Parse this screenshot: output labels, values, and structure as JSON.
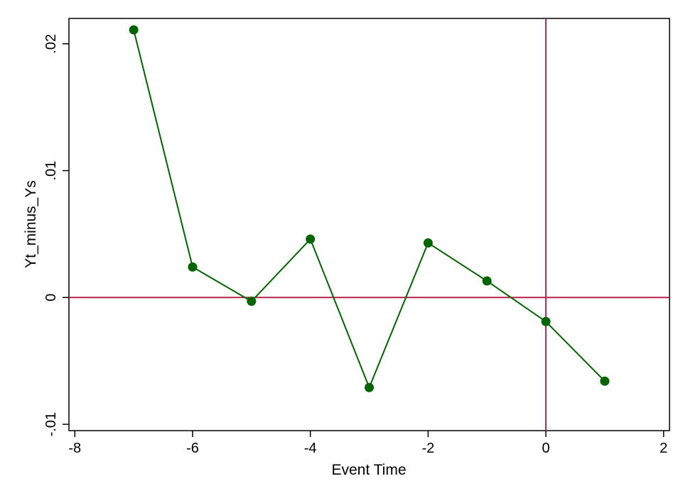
{
  "chart_data": {
    "type": "line",
    "xlabel": "Event Time",
    "ylabel": "Yt_minus_Ys",
    "xlim": [
      -8.1,
      2.1
    ],
    "ylim": [
      -0.0105,
      0.022
    ],
    "x_ticks": [
      {
        "value": -8,
        "label": "-8"
      },
      {
        "value": -6,
        "label": "-6"
      },
      {
        "value": -4,
        "label": "-4"
      },
      {
        "value": -2,
        "label": "-2"
      },
      {
        "value": 0,
        "label": "0"
      },
      {
        "value": 2,
        "label": "2"
      }
    ],
    "y_ticks": [
      {
        "value": -0.01,
        "label": "-.01"
      },
      {
        "value": 0,
        "label": "0"
      },
      {
        "value": 0.01,
        "label": ".01"
      },
      {
        "value": 0.02,
        "label": ".02"
      }
    ],
    "reference_lines": {
      "x": 0,
      "y": 0,
      "color": "#b0163f"
    },
    "series": [
      {
        "color": "#006400",
        "x": [
          -7,
          -6,
          -5,
          -4,
          -3,
          -2,
          -1,
          0,
          1
        ],
        "y": [
          0.0211,
          0.0024,
          -0.0003,
          0.0046,
          -0.0071,
          0.0043,
          0.0013,
          -0.0019,
          -0.0066
        ]
      }
    ],
    "grid": false,
    "legend": "none"
  }
}
